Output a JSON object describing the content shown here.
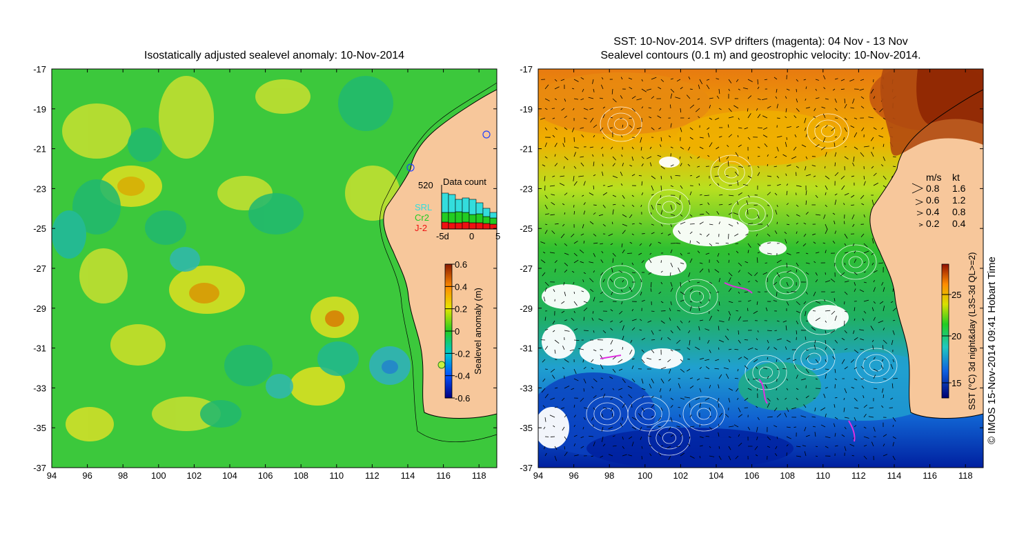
{
  "left_panel": {
    "title": "Isostatically adjusted sealevel anomaly: 10-Nov-2014",
    "colorbar": {
      "label": "Sealevel anomaly (m)",
      "ticks": [
        "0.6",
        "0.4",
        "0.2",
        "0",
        "-0.2",
        "-0.4",
        "-0.6"
      ]
    },
    "data_count": {
      "title": "Data count",
      "max_label": "520",
      "legend": [
        {
          "name": "SRL",
          "color": "#33dddd"
        },
        {
          "name": "Cr2",
          "color": "#22cc22"
        },
        {
          "name": "J-2",
          "color": "#ee1111"
        }
      ],
      "x_ticks": [
        "-5d",
        "0",
        "5"
      ]
    }
  },
  "right_panel": {
    "title_line1": "SST: 10-Nov-2014. SVP drifters (magenta): 04 Nov - 13 Nov",
    "title_line2": "Sealevel contours (0.1 m) and geostrophic velocity: 10-Nov-2014.",
    "speed_legend": {
      "header_ms": "m/s",
      "header_kt": "kt",
      "rows": [
        {
          "ms": "0.8",
          "kt": "1.6"
        },
        {
          "ms": "0.6",
          "kt": "1.2"
        },
        {
          "ms": "0.4",
          "kt": "0.8"
        },
        {
          "ms": "0.2",
          "kt": "0.4"
        }
      ]
    },
    "colorbar": {
      "label": "SST (°C) 3d night&day (L3S-3d QL>=2)",
      "ticks": [
        "25",
        "20",
        "15"
      ]
    }
  },
  "axes": {
    "x_ticks": [
      "94",
      "96",
      "98",
      "100",
      "102",
      "104",
      "106",
      "108",
      "110",
      "112",
      "114",
      "116",
      "118"
    ],
    "y_ticks": [
      "-17",
      "-19",
      "-21",
      "-23",
      "-25",
      "-27",
      "-29",
      "-31",
      "-33",
      "-35",
      "-37"
    ]
  },
  "credit": "© IMOS 15-Nov-2014 09:41 Hobart Time",
  "colors": {
    "land": "#f7c79b",
    "ssh_background": "#3cc83c",
    "sst_warm": "#e88a10",
    "sst_cold": "#1060d0"
  }
}
